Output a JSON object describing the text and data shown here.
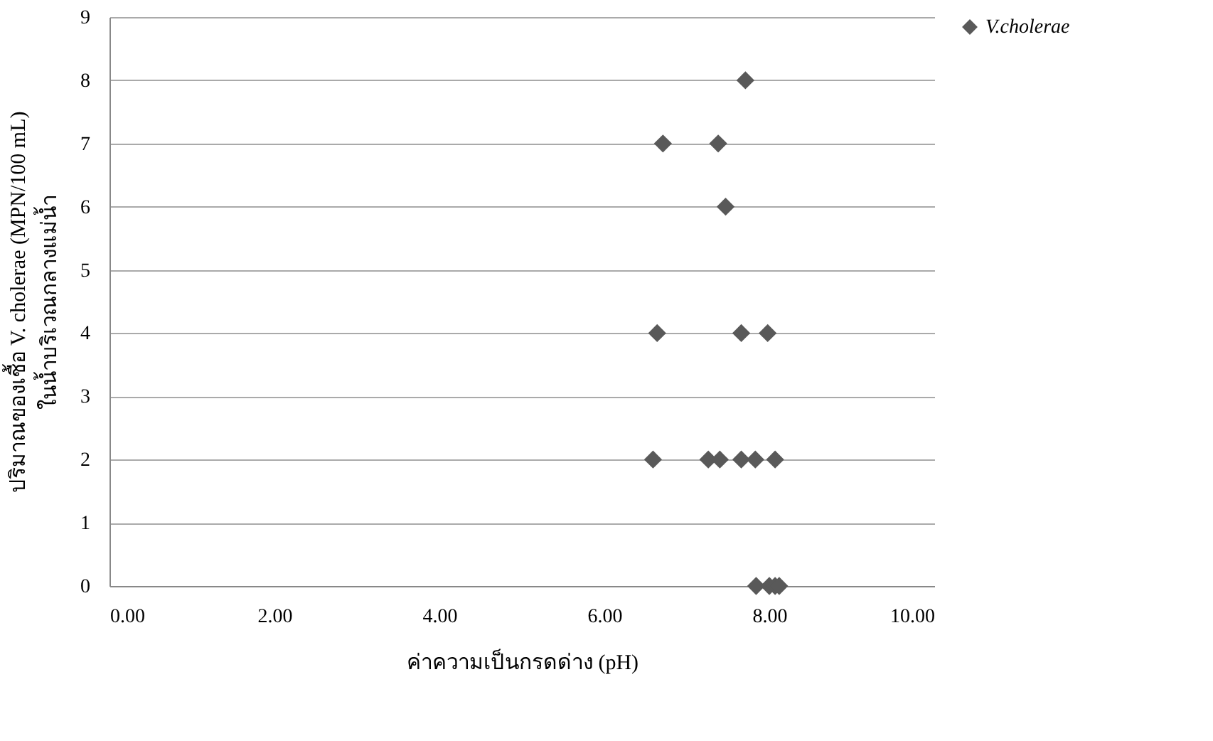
{
  "chart_data": {
    "type": "scatter",
    "xlabel": "ค่าความเป็นกรดด่าง (pH)",
    "ylabel": [
      "ปริมาณของเชื้อ  V. cholerae (MPN/100 mL)",
      "ในน้ำบริเวณกลางแม่น้ำ"
    ],
    "series": [
      {
        "name": "V.cholerae",
        "color": "#595959",
        "x": [
          7.71,
          6.71,
          7.38,
          7.47,
          6.64,
          7.66,
          7.98,
          6.59,
          7.26,
          7.4,
          7.66,
          7.83,
          8.07,
          7.84,
          8.0,
          8.07,
          8.12
        ],
        "values": [
          8,
          7,
          7,
          6,
          4,
          4,
          4,
          2,
          2,
          2,
          2,
          2,
          2,
          0,
          0,
          0,
          0
        ]
      }
    ],
    "xlim": [
      0,
      10
    ],
    "xticks": [
      {
        "value": 0,
        "label": "0.00"
      },
      {
        "value": 2,
        "label": "2.00"
      },
      {
        "value": 4,
        "label": "4.00"
      },
      {
        "value": 6,
        "label": "6.00"
      },
      {
        "value": 8,
        "label": "8.00"
      },
      {
        "value": 10,
        "label": "10.00"
      }
    ],
    "ylim": [
      0,
      9
    ],
    "yticks": [
      0,
      1,
      2,
      3,
      4,
      5,
      6,
      7,
      8,
      9
    ],
    "grid": "y",
    "legend": "top right",
    "marker": "diamond"
  }
}
